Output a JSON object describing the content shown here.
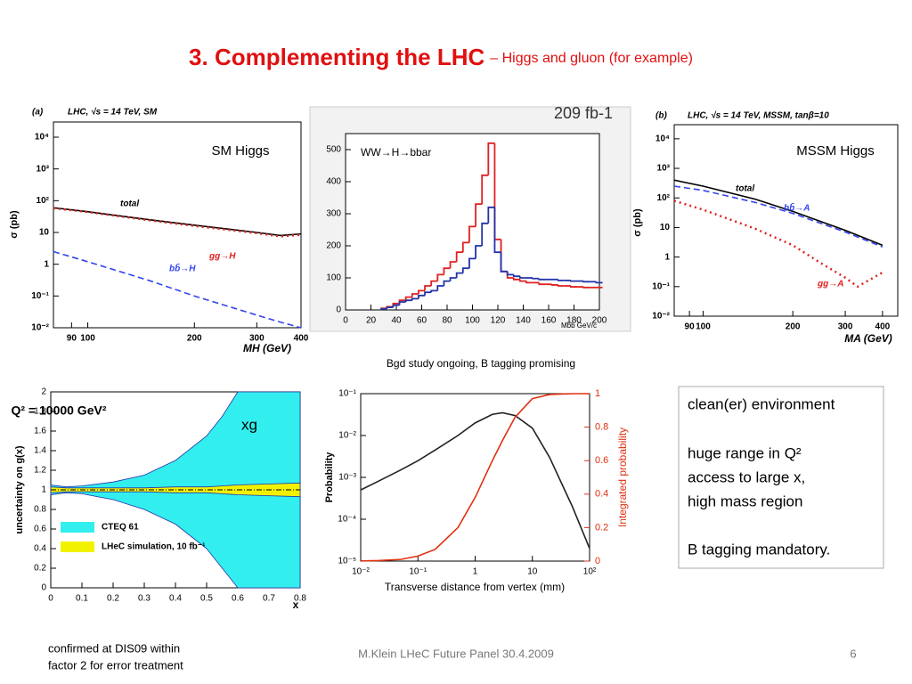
{
  "title": "3. Complementing the LHC",
  "subtitle": "– Higgs and gluon (for example)",
  "caption": "Bgd study ongoing, B tagging promising",
  "textbox": [
    "clean(er) environment",
    "huge range in Q²",
    "access to large x,",
    "high mass region",
    "B tagging mandatory."
  ],
  "note": [
    "confirmed at DIS09 within",
    "factor 2 for error treatment"
  ],
  "footer": "M.Klein LHeC Future Panel 30.4.2009",
  "page": "6",
  "chart_data": [
    {
      "type": "line",
      "panel": "(a)",
      "title": "LHC, √s = 14 TeV, SM",
      "ylabel": "σ (pb)",
      "xlabel": "MH (GeV)",
      "xlog": true,
      "ylog": true,
      "xlim": [
        80,
        400
      ],
      "ylim": [
        0.01,
        30000
      ],
      "xticks": [
        90,
        100,
        200,
        300,
        400
      ],
      "yticks": [
        {
          "value": 10000,
          "label": "10⁴"
        },
        {
          "value": 1000,
          "label": "10³"
        },
        {
          "value": 100,
          "label": "10²"
        },
        10,
        1,
        {
          "value": 0.1,
          "label": "10⁻¹"
        },
        {
          "value": 0.01,
          "label": "10⁻²"
        }
      ],
      "x": [
        80,
        100,
        150,
        200,
        300,
        350,
        400
      ],
      "series": [
        {
          "name": "total",
          "color": "#000000",
          "values": [
            60,
            45,
            25,
            17,
            10,
            8,
            9
          ]
        },
        {
          "name": "gg→H",
          "color": "#e02020",
          "dash": "dotted",
          "values": [
            58,
            44,
            24,
            16,
            9.5,
            7.5,
            8.5
          ]
        },
        {
          "name": "bb̄→H",
          "color": "#3344ee",
          "dash": "dashed",
          "values": [
            2.5,
            1.2,
            0.3,
            0.1,
            0.025,
            0.015,
            0.01
          ]
        }
      ],
      "annotations": [
        "SM Higgs"
      ]
    },
    {
      "type": "step",
      "xlabel": "Mbb GeV/c",
      "xlim": [
        0,
        200
      ],
      "ylim": [
        0,
        550
      ],
      "xticks": [
        0,
        20,
        40,
        60,
        80,
        100,
        120,
        140,
        160,
        180,
        200
      ],
      "yticks": [
        0,
        100,
        200,
        300,
        400,
        500
      ],
      "x": [
        30,
        35,
        40,
        45,
        50,
        55,
        60,
        65,
        70,
        75,
        80,
        85,
        90,
        95,
        100,
        105,
        110,
        115,
        120,
        125,
        130,
        135,
        140,
        145,
        150,
        155,
        160,
        165,
        170,
        175,
        180,
        185,
        190,
        195,
        200
      ],
      "series": [
        {
          "color": "#e02020",
          "values": [
            5,
            10,
            20,
            30,
            40,
            50,
            60,
            75,
            90,
            110,
            130,
            150,
            180,
            210,
            260,
            330,
            420,
            520,
            220,
            120,
            100,
            95,
            90,
            85,
            85,
            80,
            80,
            78,
            75,
            75,
            72,
            72,
            70,
            70,
            70
          ]
        },
        {
          "color": "#2233aa",
          "values": [
            3,
            8,
            15,
            25,
            30,
            35,
            45,
            55,
            60,
            75,
            90,
            100,
            115,
            130,
            160,
            200,
            270,
            320,
            180,
            120,
            110,
            105,
            100,
            100,
            98,
            95,
            95,
            95,
            92,
            92,
            90,
            90,
            88,
            88,
            85
          ]
        }
      ],
      "annotations": [
        "209 fb-1",
        "WW→H→bbar"
      ]
    },
    {
      "type": "line",
      "panel": "(b)",
      "title": "LHC, √s = 14 TeV, MSSM, tanβ=10",
      "ylabel": "σ (pb)",
      "xlabel": "MA (GeV)",
      "xlog": true,
      "ylog": true,
      "xlim": [
        80,
        450
      ],
      "ylim": [
        0.01,
        30000
      ],
      "xticks": [
        90,
        100,
        200,
        300,
        400
      ],
      "yticks": [
        {
          "value": 10000,
          "label": "10⁴"
        },
        {
          "value": 1000,
          "label": "10³"
        },
        {
          "value": 100,
          "label": "10²"
        },
        10,
        1,
        {
          "value": 0.1,
          "label": "10⁻¹"
        },
        {
          "value": 0.01,
          "label": "10⁻²"
        }
      ],
      "series": [
        {
          "name": "total",
          "color": "#000000",
          "x": [
            80,
            100,
            150,
            200,
            300,
            400
          ],
          "values": [
            400,
            250,
            90,
            35,
            8,
            2.5
          ]
        },
        {
          "name": "bb̄→A",
          "color": "#3344ee",
          "dash": "dashed",
          "x": [
            80,
            100,
            150,
            200,
            300,
            400
          ],
          "values": [
            250,
            180,
            70,
            30,
            7,
            2.2
          ]
        },
        {
          "name": "gg→A",
          "color": "#e02020",
          "dash": "dotted",
          "x": [
            80,
            100,
            150,
            200,
            250,
            300,
            330,
            400
          ],
          "values": [
            80,
            40,
            9,
            2.5,
            0.6,
            0.2,
            0.1,
            0.3
          ]
        }
      ],
      "annotations": [
        "MSSM Higgs"
      ]
    },
    {
      "type": "area",
      "ylabel": "uncertainty on g(x)",
      "xlabel": "x",
      "xlim": [
        0,
        0.8
      ],
      "ylim": [
        0,
        2
      ],
      "xticks": [
        0,
        0.1,
        0.2,
        0.3,
        0.4,
        0.5,
        0.6,
        0.7,
        0.8
      ],
      "yticks": [
        0,
        0.2,
        0.4,
        0.6,
        0.8,
        1,
        1.2,
        1.4,
        1.6,
        1.8,
        2
      ],
      "x": [
        0,
        0.05,
        0.1,
        0.2,
        0.3,
        0.4,
        0.5,
        0.55,
        0.6,
        0.7,
        0.8
      ],
      "series": [
        {
          "name": "CTEQ 61",
          "color": "#33eeee",
          "upper": [
            1.05,
            1.03,
            1.04,
            1.08,
            1.15,
            1.3,
            1.55,
            1.75,
            2,
            2,
            2
          ],
          "lower": [
            0.95,
            0.97,
            0.96,
            0.9,
            0.8,
            0.65,
            0.4,
            0.2,
            0,
            0,
            0
          ]
        },
        {
          "name": "LHeC simulation, 10 fb⁻¹",
          "color": "#f2f200",
          "upper": [
            1.03,
            1.02,
            1.02,
            1.02,
            1.02,
            1.03,
            1.03,
            1.04,
            1.05,
            1.06,
            1.07
          ],
          "lower": [
            0.97,
            0.98,
            0.98,
            0.98,
            0.98,
            0.97,
            0.97,
            0.96,
            0.95,
            0.94,
            0.93
          ]
        }
      ],
      "annotations": [
        "Q² = 10000 GeV²",
        "xg"
      ]
    },
    {
      "type": "line",
      "ylabel": "Probability",
      "y2label": "Integrated probability",
      "xlabel": "Transverse distance from vertex (mm)",
      "xlog": true,
      "ylog": true,
      "xlim": [
        0.01,
        100
      ],
      "ylim": [
        1e-05,
        0.1
      ],
      "y2lim": [
        0,
        1
      ],
      "xticks": [
        {
          "value": 0.01,
          "label": "10⁻²"
        },
        {
          "value": 0.1,
          "label": "10⁻¹"
        },
        1,
        10,
        {
          "value": 100,
          "label": "10²"
        }
      ],
      "yticks": [
        {
          "value": 1e-05,
          "label": "10⁻⁵"
        },
        {
          "value": 0.0001,
          "label": "10⁻⁴"
        },
        {
          "value": 0.001,
          "label": "10⁻³"
        },
        {
          "value": 0.01,
          "label": "10⁻²"
        },
        {
          "value": 0.1,
          "label": "10⁻¹"
        }
      ],
      "y2ticks": [
        0,
        0.2,
        0.4,
        0.6,
        0.8,
        1
      ],
      "x": [
        0.01,
        0.02,
        0.05,
        0.1,
        0.2,
        0.5,
        1,
        2,
        3,
        5,
        10,
        20,
        50,
        100
      ],
      "series": [
        {
          "color": "#222222",
          "values": [
            0.0005,
            0.0008,
            0.0015,
            0.0025,
            0.0045,
            0.01,
            0.02,
            0.032,
            0.035,
            0.03,
            0.015,
            0.003,
            0.0002,
            2e-05
          ]
        },
        {
          "color": "#e03010",
          "axis": "y2",
          "values": [
            0.001,
            0.003,
            0.01,
            0.03,
            0.07,
            0.2,
            0.38,
            0.6,
            0.72,
            0.86,
            0.97,
            0.995,
            1,
            1
          ]
        }
      ],
      "annotations": []
    }
  ]
}
